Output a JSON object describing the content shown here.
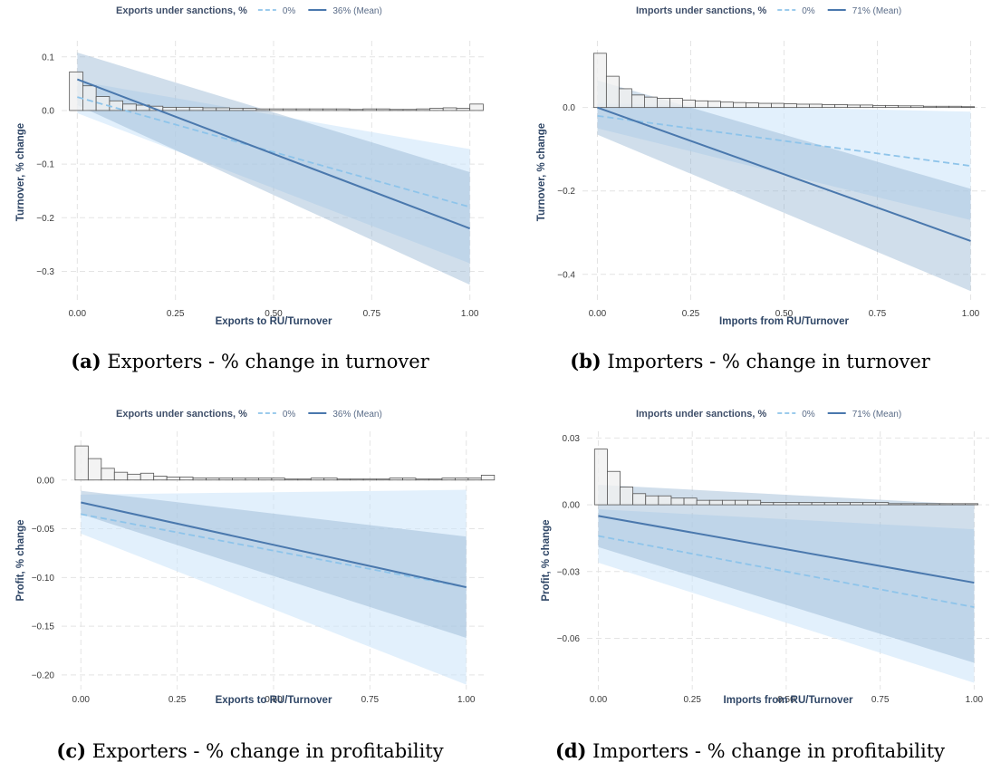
{
  "panels": [
    {
      "caption_tag": "(a)",
      "caption_text": " Exporters - % change in turnover",
      "legend": {
        "title": "Exports under sanctions, %",
        "items": [
          "0%",
          "36% (Mean)"
        ]
      },
      "chart_data": {
        "type": "line",
        "xlabel": "Exports to RU/Turnover",
        "ylabel": "Turnover, % change",
        "xlim": [
          -0.04,
          1.04
        ],
        "ylim": [
          -0.36,
          0.13
        ],
        "xticks": [
          0,
          0.25,
          0.5,
          0.75,
          1.0
        ],
        "xtick_labels": [
          "0.00",
          "0.25",
          "0.50",
          "0.75",
          "1.00"
        ],
        "yticks": [
          0.1,
          0.0,
          -0.1,
          -0.2,
          -0.3
        ],
        "ytick_labels": [
          "0.1",
          "0.0",
          "−0.1",
          "−0.2",
          "−0.3"
        ],
        "series": [
          {
            "name": "0%",
            "x": [
              0,
              1
            ],
            "y": [
              0.025,
              -0.18
            ],
            "lower": [
              -0.005,
              -0.285
            ],
            "upper": [
              0.055,
              -0.072
            ]
          },
          {
            "name": "36% (Mean)",
            "x": [
              0,
              1
            ],
            "y": [
              0.058,
              -0.22
            ],
            "lower": [
              0.01,
              -0.325
            ],
            "upper": [
              0.108,
              -0.115
            ]
          }
        ],
        "histogram": {
          "x_start": -0.02,
          "bin_width": 0.034,
          "baseline": 0.0,
          "values": [
            0.072,
            0.046,
            0.026,
            0.018,
            0.012,
            0.01,
            0.008,
            0.006,
            0.006,
            0.006,
            0.005,
            0.005,
            0.004,
            0.004,
            0.003,
            0.003,
            0.003,
            0.003,
            0.003,
            0.003,
            0.003,
            0.002,
            0.003,
            0.003,
            0.002,
            0.002,
            0.003,
            0.004,
            0.005,
            0.004,
            0.012
          ]
        }
      }
    },
    {
      "caption_tag": "(b)",
      "caption_text": " Importers - % change in turnover",
      "legend": {
        "title": "Imports under sanctions, %",
        "items": [
          "0%",
          "71% (Mean)"
        ]
      },
      "chart_data": {
        "type": "line",
        "xlabel": "Imports from RU/Turnover",
        "ylabel": "Turnover, % change",
        "xlim": [
          -0.04,
          1.04
        ],
        "ylim": [
          -0.47,
          0.16
        ],
        "xticks": [
          0,
          0.25,
          0.5,
          0.75,
          1.0
        ],
        "xtick_labels": [
          "0.00",
          "0.25",
          "0.50",
          "0.75",
          "1.00"
        ],
        "yticks": [
          0.0,
          -0.2,
          -0.4
        ],
        "ytick_labels": [
          "0.0",
          "−0.2",
          "−0.4"
        ],
        "series": [
          {
            "name": "0%",
            "x": [
              0,
              1
            ],
            "y": [
              -0.02,
              -0.14
            ],
            "lower": [
              -0.05,
              -0.27
            ],
            "upper": [
              0.01,
              -0.01
            ]
          },
          {
            "name": "71% (Mean)",
            "x": [
              0,
              1
            ],
            "y": [
              0.0,
              -0.32
            ],
            "lower": [
              -0.065,
              -0.44
            ],
            "upper": [
              0.065,
              -0.195
            ]
          }
        ],
        "histogram": {
          "x_start": -0.01,
          "bin_width": 0.034,
          "baseline": 0.0,
          "values": [
            0.13,
            0.075,
            0.045,
            0.03,
            0.025,
            0.022,
            0.022,
            0.018,
            0.016,
            0.015,
            0.013,
            0.012,
            0.011,
            0.01,
            0.01,
            0.009,
            0.008,
            0.008,
            0.007,
            0.007,
            0.006,
            0.006,
            0.005,
            0.005,
            0.004,
            0.004,
            0.003,
            0.003,
            0.003,
            0.002
          ]
        }
      }
    },
    {
      "caption_tag": "(c)",
      "caption_text": " Exporters - % change in profitability",
      "legend": {
        "title": "Exports under sanctions, %",
        "items": [
          "0%",
          "36% (Mean)"
        ]
      },
      "chart_data": {
        "type": "line",
        "xlabel": "Exports to RU/Turnover",
        "ylabel": "Profit, % change",
        "xlim": [
          -0.05,
          1.05
        ],
        "ylim": [
          -0.215,
          0.05
        ],
        "xticks": [
          0,
          0.25,
          0.5,
          0.75,
          1.0
        ],
        "xtick_labels": [
          "0.00",
          "0.25",
          "0.50",
          "0.75",
          "1.00"
        ],
        "yticks": [
          0.0,
          -0.05,
          -0.1,
          -0.15,
          -0.2
        ],
        "ytick_labels": [
          "0.00",
          "−0.05",
          "−0.10",
          "−0.15",
          "−0.20"
        ],
        "series": [
          {
            "name": "0%",
            "x": [
              0,
              1
            ],
            "y": [
              -0.035,
              -0.11
            ],
            "lower": [
              -0.055,
              -0.21
            ],
            "upper": [
              -0.015,
              -0.01
            ]
          },
          {
            "name": "36% (Mean)",
            "x": [
              0,
              1
            ],
            "y": [
              -0.023,
              -0.11
            ],
            "lower": [
              -0.035,
              -0.162
            ],
            "upper": [
              -0.011,
              -0.058
            ]
          }
        ],
        "histogram": {
          "x_start": -0.015,
          "bin_width": 0.034,
          "baseline": 0.0,
          "values": [
            0.035,
            0.022,
            0.012,
            0.008,
            0.006,
            0.007,
            0.004,
            0.003,
            0.003,
            0.002,
            0.002,
            0.002,
            0.002,
            0.002,
            0.002,
            0.002,
            0.001,
            0.001,
            0.002,
            0.002,
            0.001,
            0.001,
            0.001,
            0.001,
            0.002,
            0.002,
            0.001,
            0.001,
            0.002,
            0.002,
            0.002,
            0.005
          ]
        }
      }
    },
    {
      "caption_tag": "(d)",
      "caption_text": " Importers - % change in profitability",
      "legend": {
        "title": "Imports under sanctions, %",
        "items": [
          "0%",
          "71% (Mean)"
        ]
      },
      "chart_data": {
        "type": "line",
        "xlabel": "Imports from RU/Turnover",
        "ylabel": "Profit, % change",
        "xlim": [
          -0.03,
          1.04
        ],
        "ylim": [
          -0.083,
          0.033
        ],
        "xticks": [
          0,
          0.25,
          0.5,
          0.75,
          1.0
        ],
        "xtick_labels": [
          "0.00",
          "0.25",
          "0.50",
          "0.75",
          "1.00"
        ],
        "yticks": [
          0.03,
          0.0,
          -0.03,
          -0.06
        ],
        "ytick_labels": [
          "0.03",
          "0.00",
          "−0.03",
          "−0.06"
        ],
        "series": [
          {
            "name": "0%",
            "x": [
              0,
              1
            ],
            "y": [
              -0.014,
              -0.046
            ],
            "lower": [
              -0.026,
              -0.08
            ],
            "upper": [
              -0.002,
              -0.011
            ]
          },
          {
            "name": "71% (Mean)",
            "x": [
              0,
              1
            ],
            "y": [
              -0.005,
              -0.035
            ],
            "lower": [
              -0.019,
              -0.071
            ],
            "upper": [
              0.009,
              0.0
            ]
          }
        ],
        "histogram": {
          "x_start": -0.01,
          "bin_width": 0.034,
          "baseline": 0.0,
          "values": [
            0.025,
            0.015,
            0.008,
            0.005,
            0.004,
            0.004,
            0.003,
            0.003,
            0.002,
            0.002,
            0.002,
            0.002,
            0.002,
            0.001,
            0.001,
            0.001,
            0.001,
            0.001,
            0.001,
            0.001,
            0.001,
            0.001,
            0.001,
            0.0005,
            0.0005,
            0.0005,
            0.0005,
            0.0005,
            0.0005,
            0.0005
          ]
        }
      }
    }
  ],
  "colors": {
    "line_zero": "#8ec4ea",
    "line_mean": "#4a78ad",
    "band_zero": "#cfe6fa",
    "band_mean": "#8fb0cf",
    "grid": "#e4e4e4",
    "hist_fill": "#f0f0f0",
    "hist_stroke": "#555555"
  }
}
